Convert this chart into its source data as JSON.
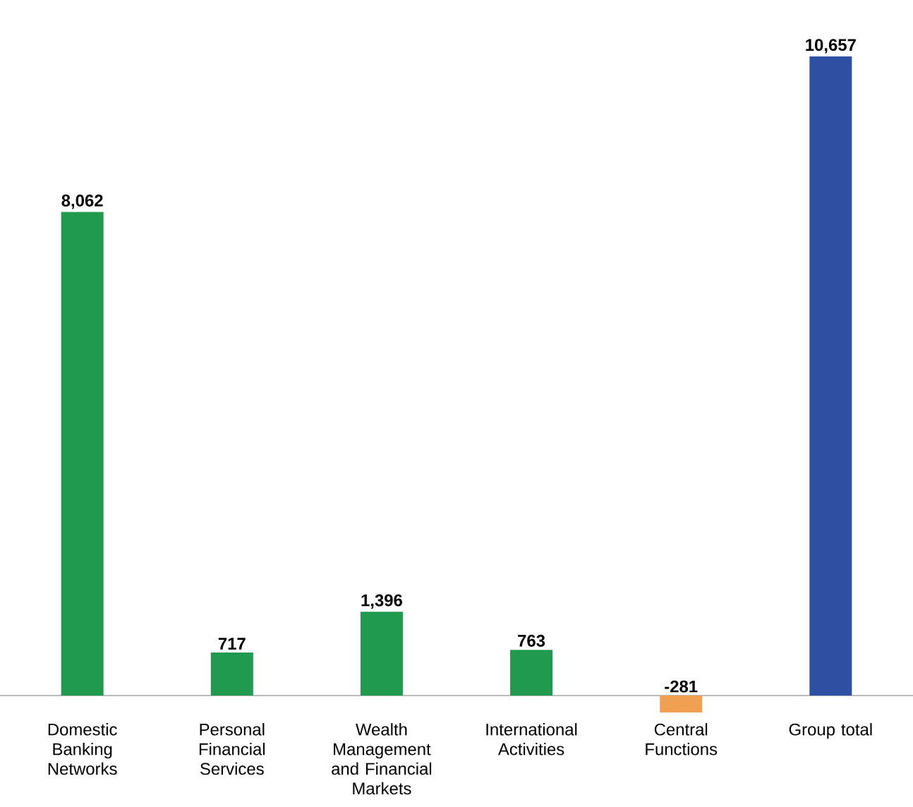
{
  "chart_data": {
    "type": "bar",
    "categories": [
      "Domestic Banking Networks",
      "Personal Financial Services",
      "Wealth Management and Financial Markets",
      "International Activities",
      "Central Functions",
      "Group total"
    ],
    "values": [
      8062,
      717,
      1396,
      763,
      -281,
      10657
    ],
    "colors": [
      "#1f9a4e",
      "#1f9a4e",
      "#1f9a4e",
      "#1f9a4e",
      "#f0a050",
      "#2f4fa2"
    ],
    "value_labels": [
      "8,062",
      "717",
      "1,396",
      "763",
      "-281",
      "10,657"
    ]
  }
}
